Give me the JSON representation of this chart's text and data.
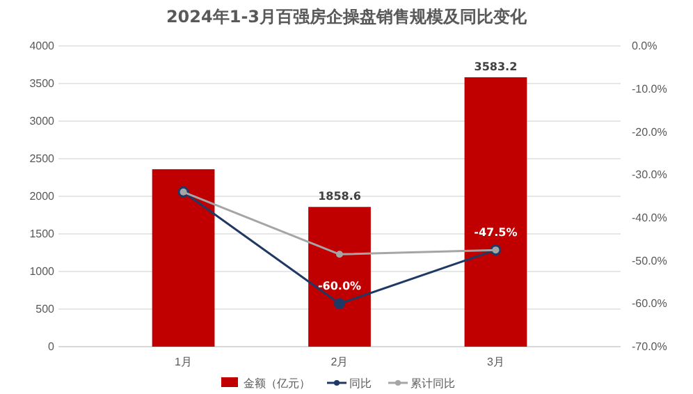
{
  "chart_data": {
    "type": "bar",
    "title": "2024年1-3月百强房企操盘销售规模及同比变化",
    "categories": [
      "1月",
      "2月",
      "3月"
    ],
    "series": [
      {
        "name": "金额（亿元）",
        "color": "#c00000",
        "values": [
          2360,
          1858.6,
          3583.2
        ],
        "value_labels": [
          null,
          "1858.6",
          "3583.2"
        ]
      },
      {
        "name": "同比",
        "type": "line",
        "axis": "y2",
        "color": "#1f3864",
        "values": [
          -34.0,
          -60.0,
          -47.5
        ],
        "value_labels": [
          null,
          "-60.0%",
          "-47.5%"
        ]
      },
      {
        "name": "累计同比",
        "type": "line",
        "axis": "y2",
        "color": "#a5a5a5",
        "values": [
          -34.0,
          -48.5,
          -47.5
        ]
      }
    ],
    "ylim": [
      0,
      4000
    ],
    "yticks": [
      0,
      500,
      1000,
      1500,
      2000,
      2500,
      3000,
      3500,
      4000
    ],
    "y2lim": [
      -70,
      0
    ],
    "y2ticks": [
      {
        "value": -70,
        "label": "-70.0%"
      },
      {
        "value": -60,
        "label": "-60.0%"
      },
      {
        "value": -50,
        "label": "-50.0%"
      },
      {
        "value": -40,
        "label": "-40.0%"
      },
      {
        "value": -30,
        "label": "-30.0%"
      },
      {
        "value": -20,
        "label": "-20.0%"
      },
      {
        "value": -10,
        "label": "-10.0%"
      },
      {
        "value": 0,
        "label": "0.0%"
      }
    ],
    "grid": "y",
    "legend": "bottom",
    "marker": "circle"
  }
}
